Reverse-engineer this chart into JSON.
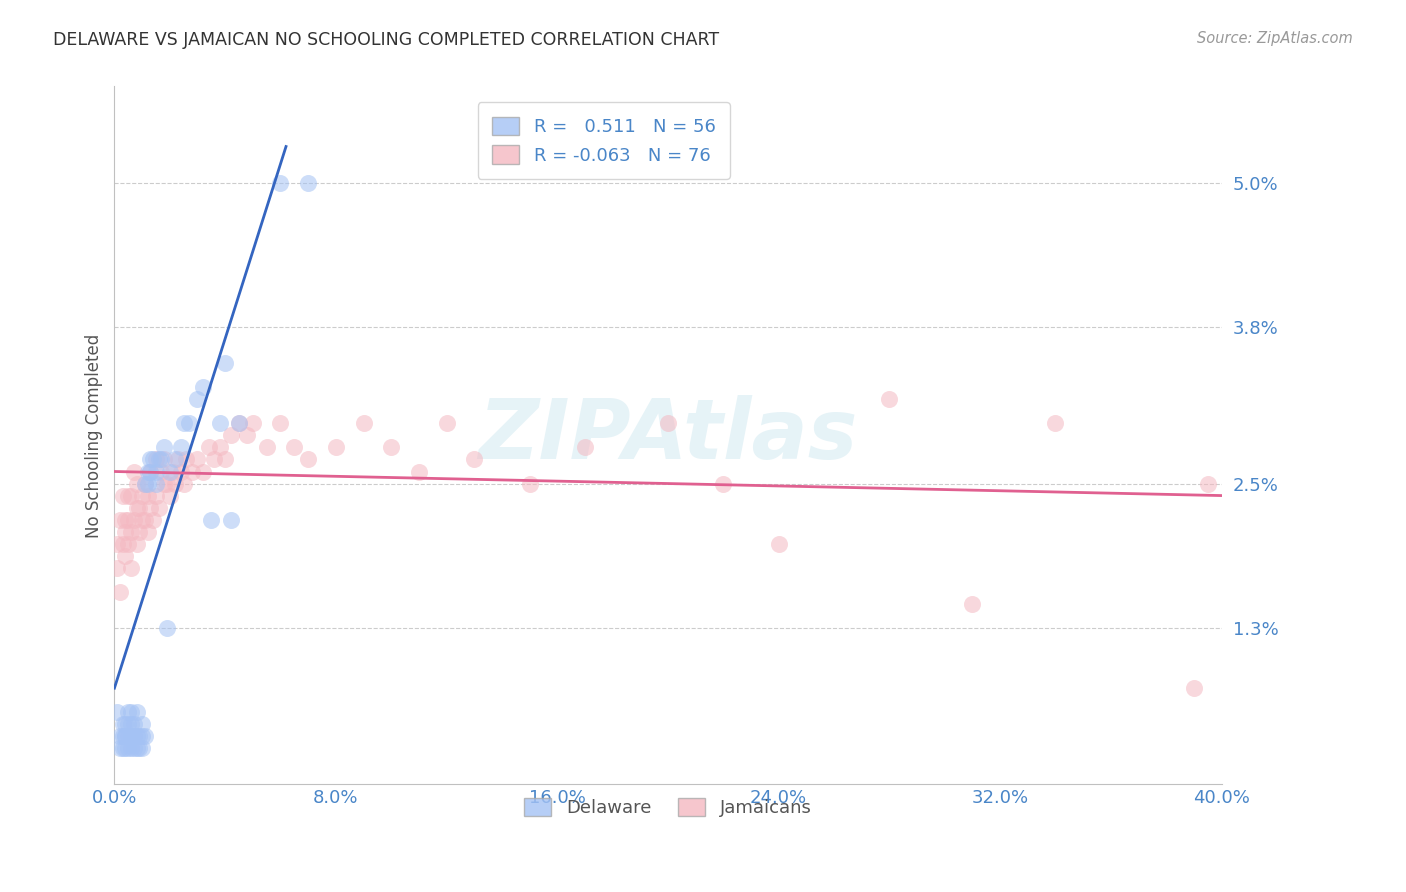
{
  "title": "DELAWARE VS JAMAICAN NO SCHOOLING COMPLETED CORRELATION CHART",
  "source": "Source: ZipAtlas.com",
  "ylabel": "No Schooling Completed",
  "ytick_values": [
    0.013,
    0.025,
    0.038,
    0.05
  ],
  "ytick_labels": [
    "1.3%",
    "2.5%",
    "3.8%",
    "5.0%"
  ],
  "xtick_values": [
    0.0,
    0.08,
    0.16,
    0.24,
    0.32,
    0.4
  ],
  "xtick_labels": [
    "0.0%",
    "8.0%",
    "16.0%",
    "24.0%",
    "32.0%",
    "40.0%"
  ],
  "xmin": 0.0,
  "xmax": 0.4,
  "ymin": 0.0,
  "ymax": 0.058,
  "watermark": "ZIPAtlas",
  "delaware_color": "#a4c2f4",
  "jamaican_color": "#f4b8c1",
  "delaware_line_color": "#3465c0",
  "jamaican_line_color": "#e06090",
  "delaware_x": [
    0.001,
    0.002,
    0.002,
    0.003,
    0.003,
    0.003,
    0.004,
    0.004,
    0.004,
    0.004,
    0.005,
    0.005,
    0.005,
    0.005,
    0.006,
    0.006,
    0.006,
    0.006,
    0.007,
    0.007,
    0.007,
    0.008,
    0.008,
    0.008,
    0.009,
    0.009,
    0.01,
    0.01,
    0.01,
    0.011,
    0.011,
    0.012,
    0.012,
    0.013,
    0.013,
    0.014,
    0.015,
    0.015,
    0.016,
    0.017,
    0.018,
    0.019,
    0.02,
    0.022,
    0.024,
    0.025,
    0.027,
    0.03,
    0.032,
    0.035,
    0.038,
    0.04,
    0.042,
    0.045,
    0.06,
    0.07
  ],
  "delaware_y": [
    0.006,
    0.004,
    0.003,
    0.005,
    0.004,
    0.003,
    0.004,
    0.003,
    0.005,
    0.004,
    0.003,
    0.004,
    0.005,
    0.006,
    0.003,
    0.004,
    0.005,
    0.006,
    0.003,
    0.004,
    0.005,
    0.003,
    0.004,
    0.006,
    0.003,
    0.004,
    0.003,
    0.004,
    0.005,
    0.004,
    0.025,
    0.025,
    0.026,
    0.026,
    0.027,
    0.027,
    0.025,
    0.026,
    0.027,
    0.027,
    0.028,
    0.013,
    0.026,
    0.027,
    0.028,
    0.03,
    0.03,
    0.032,
    0.033,
    0.022,
    0.03,
    0.035,
    0.022,
    0.03,
    0.05,
    0.05
  ],
  "jamaican_x": [
    0.001,
    0.001,
    0.002,
    0.002,
    0.003,
    0.003,
    0.004,
    0.004,
    0.004,
    0.005,
    0.005,
    0.005,
    0.006,
    0.006,
    0.006,
    0.007,
    0.007,
    0.008,
    0.008,
    0.008,
    0.009,
    0.009,
    0.01,
    0.01,
    0.011,
    0.011,
    0.012,
    0.012,
    0.013,
    0.013,
    0.014,
    0.015,
    0.015,
    0.016,
    0.017,
    0.018,
    0.018,
    0.019,
    0.02,
    0.021,
    0.022,
    0.023,
    0.024,
    0.025,
    0.026,
    0.028,
    0.03,
    0.032,
    0.034,
    0.036,
    0.038,
    0.04,
    0.042,
    0.045,
    0.048,
    0.05,
    0.055,
    0.06,
    0.065,
    0.07,
    0.08,
    0.09,
    0.1,
    0.11,
    0.12,
    0.13,
    0.15,
    0.17,
    0.2,
    0.22,
    0.24,
    0.28,
    0.31,
    0.34,
    0.39,
    0.395
  ],
  "jamaican_y": [
    0.02,
    0.018,
    0.022,
    0.016,
    0.024,
    0.02,
    0.022,
    0.019,
    0.021,
    0.02,
    0.022,
    0.024,
    0.018,
    0.021,
    0.024,
    0.022,
    0.026,
    0.02,
    0.023,
    0.025,
    0.021,
    0.023,
    0.022,
    0.024,
    0.022,
    0.025,
    0.021,
    0.024,
    0.023,
    0.026,
    0.022,
    0.024,
    0.027,
    0.023,
    0.026,
    0.025,
    0.027,
    0.025,
    0.024,
    0.026,
    0.025,
    0.027,
    0.026,
    0.025,
    0.027,
    0.026,
    0.027,
    0.026,
    0.028,
    0.027,
    0.028,
    0.027,
    0.029,
    0.03,
    0.029,
    0.03,
    0.028,
    0.03,
    0.028,
    0.027,
    0.028,
    0.03,
    0.028,
    0.026,
    0.03,
    0.027,
    0.025,
    0.028,
    0.03,
    0.025,
    0.02,
    0.032,
    0.015,
    0.03,
    0.008,
    0.025
  ],
  "del_line_x0": 0.0,
  "del_line_y0": 0.008,
  "del_line_x1": 0.062,
  "del_line_y1": 0.053,
  "jam_line_x0": 0.0,
  "jam_line_y0": 0.026,
  "jam_line_x1": 0.4,
  "jam_line_y1": 0.024
}
